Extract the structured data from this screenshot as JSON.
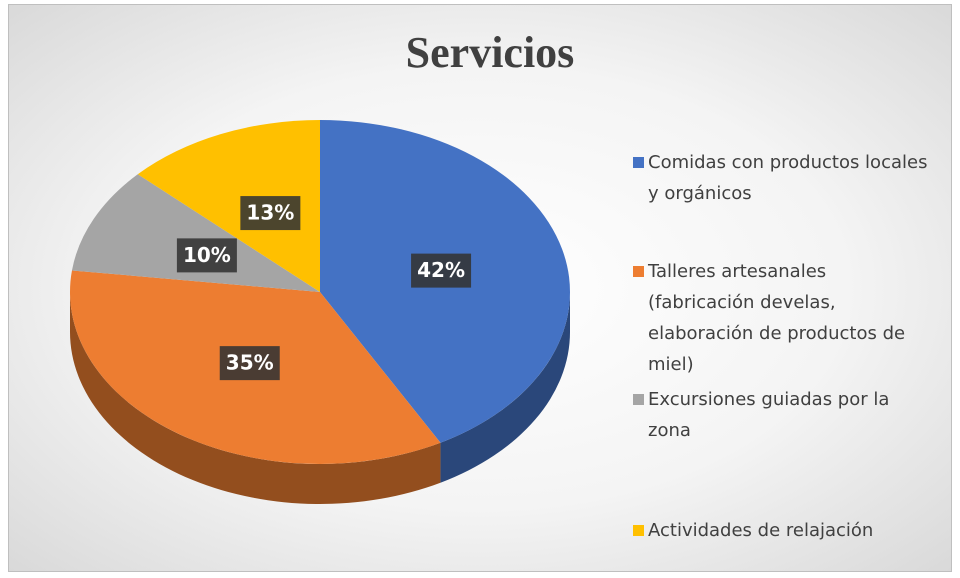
{
  "chart_data": {
    "type": "pie",
    "title": "Servicios",
    "categories": [
      "Comidas con productos locales y orgánicos",
      "Talleres artesanales (fabricación develas, elaboración de productos de miel)",
      "Excursiones guiadas por la zona",
      "Actividades de relajación"
    ],
    "values": [
      42,
      35,
      10,
      13
    ],
    "value_labels": [
      "42%",
      "35%",
      "10%",
      "13%"
    ],
    "colors": [
      "#4472c4",
      "#ed7d31",
      "#a5a5a5",
      "#ffc000"
    ],
    "legend": "right"
  }
}
